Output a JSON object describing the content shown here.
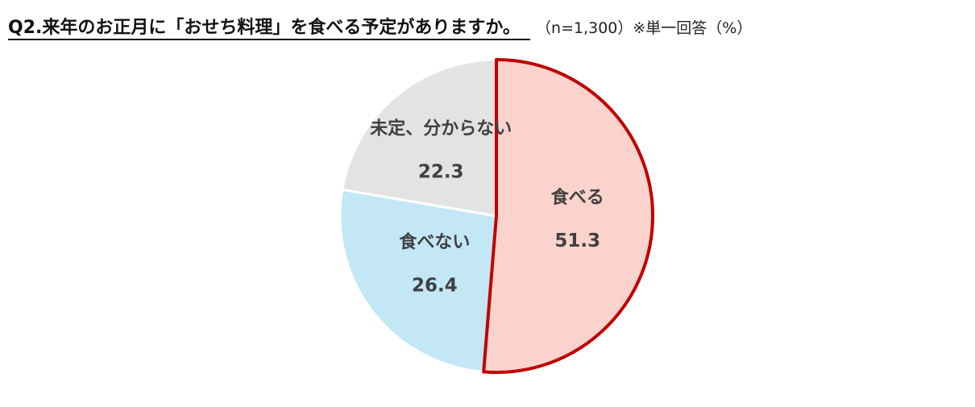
{
  "header": {
    "question": "Q2.来年のお正月に「おせち料理」を食べる予定がありますか。",
    "note": "（n=1,300）※単一回答（%）"
  },
  "chart_data": {
    "type": "pie",
    "title": "Q2.来年のお正月に「おせち料理」を食べる予定がありますか。",
    "unit": "%",
    "sample": "n=1,300",
    "slices": [
      {
        "label": "食べる",
        "value": 51.3,
        "color": "#FBD3CD",
        "stroke": "#C00000",
        "highlight": true
      },
      {
        "label": "食べない",
        "value": 26.4,
        "color": "#C3E7F5",
        "stroke": "#ffffff",
        "highlight": false
      },
      {
        "label": "未定、分からない",
        "value": 22.3,
        "color": "#E3E3E3",
        "stroke": "#ffffff",
        "highlight": false
      }
    ]
  }
}
